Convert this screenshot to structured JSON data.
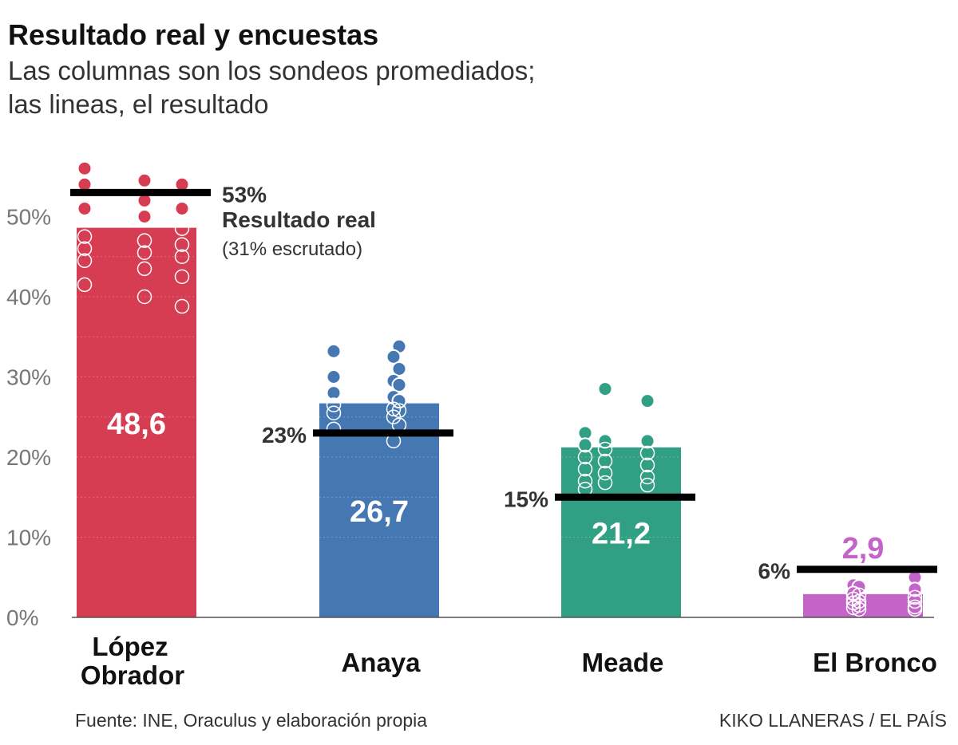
{
  "title": "Resultado real y encuestas",
  "subtitle": "Las columnas son los sondeos promediados; las lineas, el resultado",
  "footer": {
    "source": "Fuente: INE, Oraculus y elaboración propia",
    "credit": "KIKO LLANERAS / EL PAÍS"
  },
  "annotation": {
    "title": "Resultado real",
    "note": "(31% escrutado)"
  },
  "chart_data": {
    "type": "bar",
    "categories": [
      "López Obrador",
      "Anaya",
      "Meade",
      "El Bronco"
    ],
    "category_lines": [
      [
        "López",
        "Obrador"
      ],
      [
        "Anaya"
      ],
      [
        "Meade"
      ],
      [
        "El Bronco"
      ]
    ],
    "y_ticks": [
      0,
      10,
      20,
      30,
      40,
      50
    ],
    "y_tick_labels": [
      "0%",
      "10%",
      "20%",
      "30%",
      "40%",
      "50%"
    ],
    "ylim": [
      0,
      56
    ],
    "grid": false,
    "series": [
      {
        "values": [
          48.6,
          26.7,
          21.2,
          2.9
        ],
        "labels": [
          "48,6",
          "26,7",
          "21,2",
          "2,9"
        ]
      }
    ],
    "real_result": {
      "values": [
        53,
        23,
        15,
        6
      ],
      "labels": [
        "53%",
        "23%",
        "15%",
        "6%"
      ]
    },
    "polls": [
      [
        56,
        54.5,
        54,
        54,
        52,
        51,
        51,
        50,
        48.5,
        47.5,
        47,
        46.5,
        46,
        45.5,
        45,
        44.5,
        43.5,
        42.5,
        41.5,
        40,
        38.8
      ],
      [
        33.8,
        33.2,
        32.5,
        31,
        30,
        29.5,
        29,
        28,
        27.5,
        27,
        26.5,
        26,
        25.8,
        25.5,
        25,
        24,
        23.5,
        22
      ],
      [
        28.5,
        27,
        23,
        22,
        22,
        21.5,
        21,
        20.5,
        20,
        19.5,
        19,
        18.5,
        18,
        17.5,
        17,
        16.8,
        16.5,
        16
      ],
      [
        5,
        4,
        3.8,
        3.5,
        3,
        2.8,
        2.5,
        2.3,
        2,
        2,
        1.8,
        1.5,
        1.3,
        1.2,
        1,
        1
      ]
    ],
    "colors": [
      "#d63c52",
      "#4578b2",
      "#319f84",
      "#c463c8"
    ],
    "result_line_color": "#000000"
  }
}
